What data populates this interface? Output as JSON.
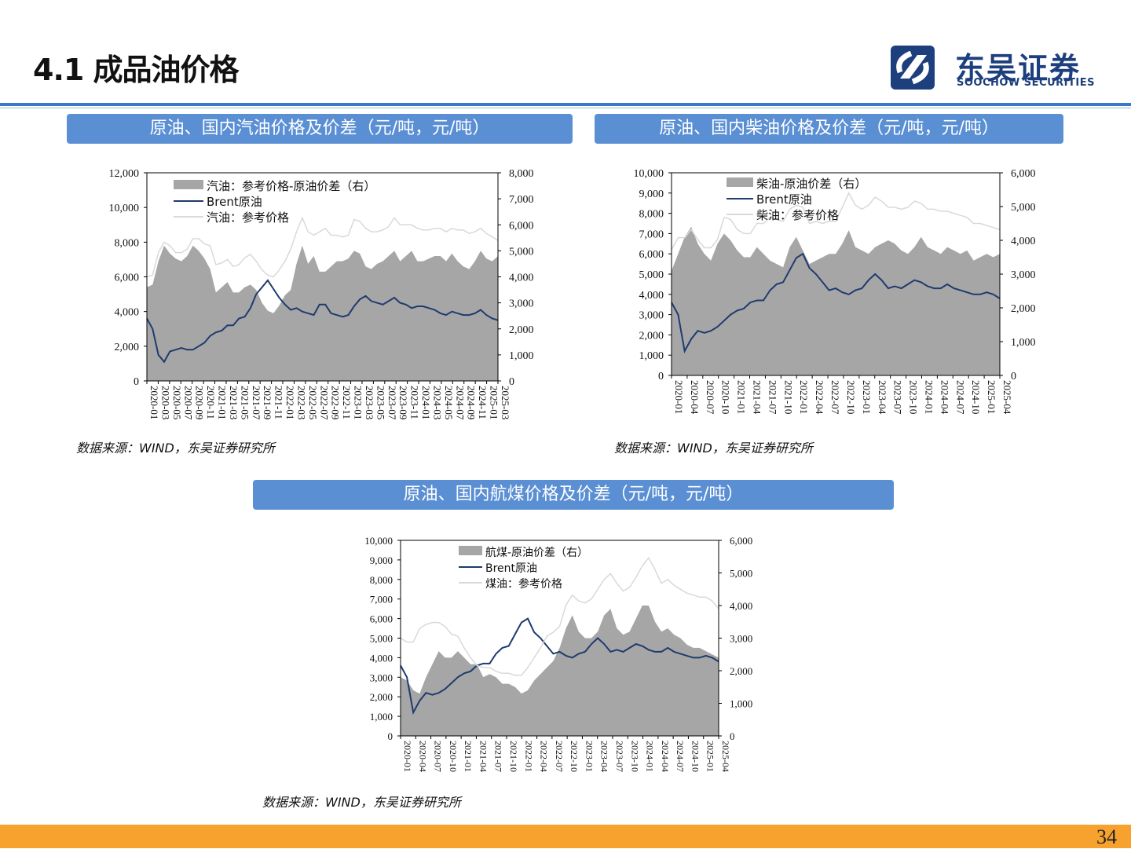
{
  "page": {
    "title": "4.1 成品油价格",
    "logo_cn": "东吴证券",
    "logo_en": "SOOCHOW SECURITIES",
    "page_number": "34",
    "accent": "#3b78c5",
    "footer_color": "#f7a12f"
  },
  "chart_data": [
    {
      "type": "area",
      "title": "原油、国内汽油价格及价差（元/吨，元/吨）",
      "source": "数据来源：WIND，东吴证券研究所",
      "y_left_ticks": [
        "12,000",
        "10,000",
        "8,000",
        "6,000",
        "4,000",
        "2,000",
        "0"
      ],
      "y_right_ticks": [
        "8,000",
        "7,000",
        "6,000",
        "5,000",
        "4,000",
        "3,000",
        "2,000",
        "1,000",
        "0"
      ],
      "ylim_left": [
        0,
        12000
      ],
      "ylim_right": [
        0,
        8000
      ],
      "x_ticks": [
        "2020-01",
        "2020-03",
        "2020-05",
        "2020-07",
        "2020-09",
        "2020-11",
        "2021-01",
        "2021-03",
        "2021-05",
        "2021-07",
        "2021-09",
        "2021-11",
        "2022-01",
        "2022-03",
        "2022-05",
        "2022-07",
        "2022-09",
        "2022-11",
        "2023-01",
        "2023-03",
        "2023-05",
        "2023-07",
        "2023-09",
        "2023-11",
        "2024-01",
        "2024-03",
        "2024-05",
        "2024-07",
        "2024-09",
        "2024-11",
        "2025-01",
        "2025-03"
      ],
      "legend": [
        "汽油：参考价格-原油价差（右）",
        "Brent原油",
        "汽油：参考价格"
      ],
      "series": [
        {
          "name": "汽油：参考价格-原油价差（右）",
          "axis": "right",
          "style": "area",
          "color": "#a6a6a6",
          "values": [
            3600,
            3700,
            4600,
            5200,
            4900,
            4700,
            4600,
            4800,
            5200,
            5000,
            4700,
            4300,
            3400,
            3600,
            3800,
            3400,
            3400,
            3600,
            3700,
            3500,
            3000,
            2700,
            2600,
            2900,
            3300,
            3500,
            4500,
            5200,
            4500,
            4800,
            4200,
            4200,
            4400,
            4600,
            4600,
            4700,
            5000,
            4900,
            4400,
            4300,
            4500,
            4600,
            4800,
            5000,
            4600,
            4800,
            5000,
            4600,
            4600,
            4700,
            4800,
            4800,
            4600,
            4900,
            4600,
            4400,
            4300,
            4600,
            5000,
            4700,
            4600,
            4800
          ]
        },
        {
          "name": "Brent原油",
          "axis": "left",
          "style": "line",
          "color": "#1f3b6e",
          "values": [
            3600,
            3000,
            1500,
            1100,
            1700,
            1800,
            1900,
            1800,
            1800,
            2000,
            2200,
            2600,
            2800,
            2900,
            3200,
            3200,
            3600,
            3700,
            4200,
            5000,
            5400,
            5800,
            5300,
            4800,
            4400,
            4100,
            4200,
            4000,
            3900,
            3800,
            4400,
            4400,
            3900,
            3800,
            3700,
            3800,
            4300,
            4700,
            4900,
            4600,
            4500,
            4400,
            4600,
            4800,
            4500,
            4400,
            4200,
            4300,
            4300,
            4200,
            4100,
            3900,
            3800,
            4000,
            3900,
            3800,
            3800,
            3900,
            4100,
            3800,
            3600,
            3500
          ]
        },
        {
          "name": "汽油：参考价格",
          "axis": "left",
          "style": "line",
          "color": "#d9d9d9",
          "values": [
            6000,
            6100,
            7400,
            8000,
            7800,
            7400,
            7400,
            7600,
            8200,
            8200,
            7900,
            7800,
            6700,
            6800,
            7000,
            6600,
            6700,
            7100,
            7300,
            6900,
            6400,
            6100,
            6000,
            6400,
            6900,
            7600,
            8600,
            9400,
            8600,
            8400,
            8600,
            8800,
            8400,
            8400,
            8300,
            8400,
            9300,
            9200,
            8800,
            8600,
            8600,
            8700,
            8900,
            9400,
            9000,
            9000,
            9000,
            8800,
            8700,
            8700,
            8800,
            8800,
            8600,
            8800,
            8700,
            8700,
            8500,
            8600,
            8800,
            8500,
            8300,
            8100
          ]
        }
      ]
    },
    {
      "type": "area",
      "title": "原油、国内柴油价格及价差（元/吨，元/吨）",
      "source": "数据来源：WIND，东吴证券研究所",
      "y_left_ticks": [
        "10,000",
        "9,000",
        "8,000",
        "7,000",
        "6,000",
        "5,000",
        "4,000",
        "3,000",
        "2,000",
        "1,000",
        "0"
      ],
      "y_right_ticks": [
        "6,000",
        "5,000",
        "4,000",
        "3,000",
        "2,000",
        "1,000",
        "0"
      ],
      "ylim_left": [
        0,
        10000
      ],
      "ylim_right": [
        0,
        6000
      ],
      "x_ticks": [
        "2020-01",
        "2020-04",
        "2020-07",
        "2020-10",
        "2021-01",
        "2021-04",
        "2021-07",
        "2021-10",
        "2022-01",
        "2022-04",
        "2022-07",
        "2022-10",
        "2023-01",
        "2023-04",
        "2023-07",
        "2023-10",
        "2024-01",
        "2024-04",
        "2024-07",
        "2024-10",
        "2025-01",
        "2025-04"
      ],
      "legend": [
        "柴油-原油价差（右）",
        "Brent原油",
        "柴油：参考价格"
      ],
      "series": [
        {
          "name": "柴油-原油价差（右）",
          "axis": "right",
          "style": "area",
          "color": "#a6a6a6",
          "values": [
            3100,
            3600,
            4100,
            4400,
            3900,
            3600,
            3400,
            3900,
            4200,
            4000,
            3700,
            3500,
            3500,
            3800,
            3600,
            3400,
            3300,
            3200,
            3800,
            4100,
            3700,
            3300,
            3400,
            3500,
            3600,
            3600,
            3900,
            4300,
            3800,
            3700,
            3600,
            3800,
            3900,
            4000,
            3900,
            3700,
            3600,
            3800,
            4100,
            3800,
            3700,
            3600,
            3800,
            3700,
            3600,
            3700,
            3400,
            3500,
            3600,
            3500,
            3600
          ]
        },
        {
          "name": "Brent原油",
          "axis": "left",
          "style": "line",
          "color": "#1f3b6e",
          "values": [
            3600,
            3000,
            1200,
            1800,
            2200,
            2100,
            2200,
            2400,
            2700,
            3000,
            3200,
            3300,
            3600,
            3700,
            3700,
            4200,
            4500,
            4600,
            5200,
            5800,
            6000,
            5300,
            5000,
            4600,
            4200,
            4300,
            4100,
            4000,
            4200,
            4300,
            4700,
            5000,
            4700,
            4300,
            4400,
            4300,
            4500,
            4700,
            4600,
            4400,
            4300,
            4300,
            4500,
            4300,
            4200,
            4100,
            4000,
            4000,
            4100,
            4000,
            3800
          ]
        },
        {
          "name": "柴油：参考价格",
          "axis": "left",
          "style": "line",
          "color": "#d9d9d9",
          "values": [
            6200,
            6800,
            6800,
            7200,
            6700,
            6300,
            6300,
            6700,
            7800,
            7700,
            7200,
            7000,
            7000,
            7500,
            7500,
            7800,
            7700,
            7600,
            8200,
            8400,
            8300,
            7500,
            7600,
            7500,
            7600,
            7600,
            8300,
            9000,
            8400,
            8200,
            8400,
            8800,
            8600,
            8300,
            8300,
            8200,
            8300,
            8600,
            8500,
            8200,
            8200,
            8100,
            8100,
            8000,
            7900,
            7800,
            7500,
            7500,
            7400,
            7300,
            7200
          ]
        }
      ]
    },
    {
      "type": "area",
      "title": "原油、国内航煤价格及价差（元/吨，元/吨）",
      "source": "数据来源：WIND，东吴证券研究所",
      "y_left_ticks": [
        "10,000",
        "9,000",
        "8,000",
        "7,000",
        "6,000",
        "5,000",
        "4,000",
        "3,000",
        "2,000",
        "1,000",
        "0"
      ],
      "y_right_ticks": [
        "6,000",
        "5,000",
        "4,000",
        "3,000",
        "2,000",
        "1,000",
        "0"
      ],
      "ylim_left": [
        0,
        10000
      ],
      "ylim_right": [
        0,
        6000
      ],
      "x_ticks": [
        "2020-01",
        "2020-04",
        "2020-07",
        "2020-10",
        "2021-01",
        "2021-04",
        "2021-07",
        "2021-10",
        "2022-01",
        "2022-04",
        "2022-07",
        "2022-10",
        "2023-01",
        "2023-04",
        "2023-07",
        "2023-10",
        "2024-01",
        "2024-04",
        "2024-07",
        "2024-10",
        "2025-01",
        "2025-04"
      ],
      "legend": [
        "航煤-原油价差（右）",
        "Brent原油",
        "煤油：参考价格"
      ],
      "series": [
        {
          "name": "航煤-原油价差（右）",
          "axis": "right",
          "style": "area",
          "color": "#a6a6a6",
          "values": [
            1800,
            1700,
            1400,
            1300,
            1800,
            2200,
            2600,
            2400,
            2400,
            2600,
            2400,
            2200,
            2200,
            1800,
            1900,
            1800,
            1600,
            1600,
            1500,
            1300,
            1400,
            1700,
            1900,
            2100,
            2300,
            2700,
            3300,
            3700,
            3200,
            3000,
            3000,
            3200,
            3700,
            3900,
            3300,
            3100,
            3200,
            3600,
            4000,
            4000,
            3500,
            3200,
            3300,
            3100,
            3000,
            2800,
            2700,
            2700,
            2600,
            2500,
            2400
          ]
        },
        {
          "name": "Brent原油",
          "axis": "left",
          "style": "line",
          "color": "#1f3b6e",
          "values": [
            3600,
            3000,
            1200,
            1800,
            2200,
            2100,
            2200,
            2400,
            2700,
            3000,
            3200,
            3300,
            3600,
            3700,
            3700,
            4200,
            4500,
            4600,
            5200,
            5800,
            6000,
            5300,
            5000,
            4600,
            4200,
            4300,
            4100,
            4000,
            4200,
            4300,
            4700,
            5000,
            4700,
            4300,
            4400,
            4300,
            4500,
            4700,
            4600,
            4400,
            4300,
            4300,
            4500,
            4300,
            4200,
            4100,
            4000,
            4000,
            4100,
            4000,
            3800
          ]
        },
        {
          "name": "煤油：参考价格",
          "axis": "left",
          "style": "line",
          "color": "#d9d9d9",
          "values": [
            5000,
            4800,
            4800,
            5500,
            5700,
            5800,
            5800,
            5600,
            5200,
            5100,
            4500,
            4000,
            3600,
            3500,
            3500,
            3300,
            3200,
            3200,
            3100,
            3100,
            3500,
            4000,
            4500,
            5100,
            5300,
            5600,
            6700,
            7200,
            6900,
            6800,
            7000,
            7500,
            8000,
            8300,
            7800,
            7400,
            7600,
            8100,
            8700,
            9100,
            8500,
            7800,
            8000,
            7700,
            7500,
            7300,
            7200,
            7100,
            7100,
            6900,
            6500
          ]
        }
      ]
    }
  ]
}
